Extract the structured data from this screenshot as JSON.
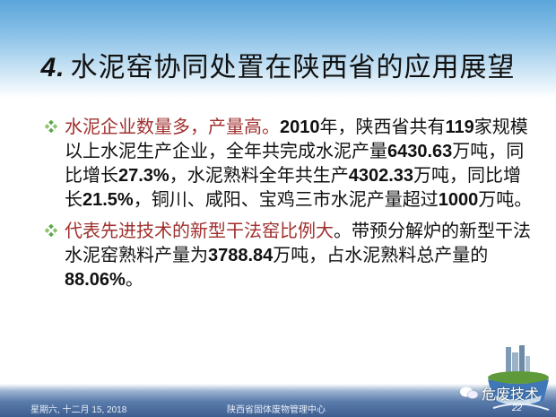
{
  "title": {
    "number": "4.",
    "text": "水泥窑协同处置在陕西省的应用展望"
  },
  "bullets": [
    {
      "lines": [
        [
          {
            "t": "水泥企业数量多，产量高。",
            "s": "red"
          },
          {
            "t": "2010",
            "s": "bold"
          },
          {
            "t": "年，陕西省共有"
          },
          {
            "t": "119",
            "s": "bold"
          },
          {
            "t": "家规模"
          }
        ],
        [
          {
            "t": "以上水泥生产企业，全年共完成水泥产量"
          },
          {
            "t": "6430.63",
            "s": "bold"
          },
          {
            "t": "万吨，同"
          }
        ],
        [
          {
            "t": "比增长"
          },
          {
            "t": "27.3%",
            "s": "bold"
          },
          {
            "t": "，水泥熟料全年共生产"
          },
          {
            "t": "4302.33",
            "s": "bold"
          },
          {
            "t": "万吨，同比增"
          }
        ],
        [
          {
            "t": "长"
          },
          {
            "t": "21.5%",
            "s": "bold"
          },
          {
            "t": "，铜川、咸阳、宝鸡三市水泥产量超过"
          },
          {
            "t": "1000",
            "s": "bold"
          },
          {
            "t": "万吨。"
          }
        ]
      ]
    },
    {
      "lines": [
        [
          {
            "t": "代表先进技术的新型干法窑比例大",
            "s": "red"
          },
          {
            "t": "。带预分解炉的新型干法"
          }
        ],
        [
          {
            "t": "水泥窑熟料产量为"
          },
          {
            "t": "3788.84",
            "s": "bold"
          },
          {
            "t": "万吨，占水泥熟料总产量的"
          }
        ],
        [
          {
            "t": "88.06%",
            "s": "bold"
          },
          {
            "t": "。"
          }
        ]
      ]
    }
  ],
  "footer": {
    "date": "星期六, 十二月 15, 2018",
    "org": "陕西省固体废物管理中心",
    "page_number": "22"
  },
  "watermark": {
    "text": "危废技术",
    "icon": "wechat-icon"
  },
  "colors": {
    "highlight": "#a0302e",
    "bullet": "#5aa84a",
    "footer_band": "#3d5d8f"
  }
}
